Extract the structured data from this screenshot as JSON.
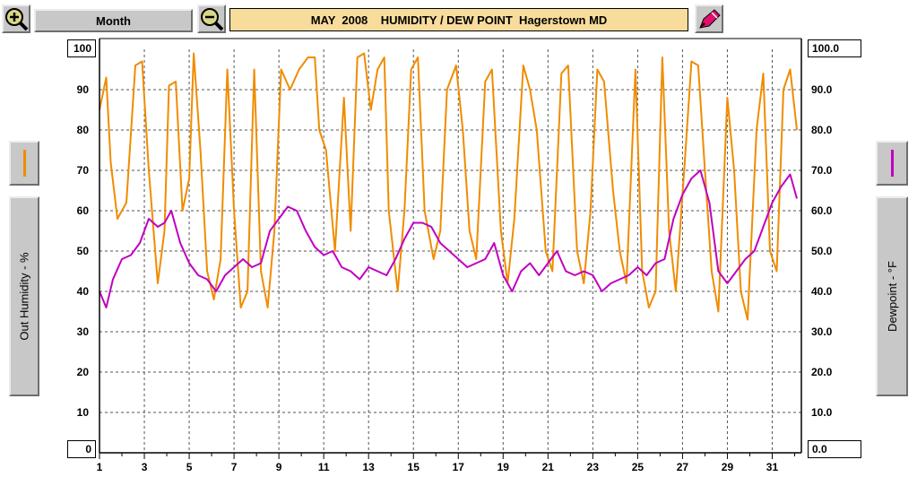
{
  "toolbar": {
    "zoom_in_icon": "zoom-in-magnifier",
    "zoom_out_icon": "zoom-out-magnifier",
    "period_label": "Month",
    "title": "MAY  2008    HUMIDITY / DEW POINT  Hagerstown MD",
    "pencil_icon": "pencil-icon"
  },
  "left_panel": {
    "top_value": "100",
    "bottom_value": "0",
    "axis_label": "Out Humidity - %",
    "legend_color": "#f08c00"
  },
  "right_panel": {
    "top_value": "100.0",
    "bottom_value": "0.0",
    "axis_label": "Dewpoint - °F",
    "legend_color": "#c000c0"
  },
  "chart_data": {
    "type": "line",
    "x_ticks": [
      "1",
      "3",
      "5",
      "7",
      "9",
      "11",
      "13",
      "15",
      "17",
      "19",
      "21",
      "23",
      "25",
      "27",
      "29",
      "31"
    ],
    "xlim": [
      1,
      32.3
    ],
    "y_left_ticks": [
      "90",
      "80",
      "70",
      "60",
      "50",
      "40",
      "30",
      "20",
      "10"
    ],
    "y_right_ticks": [
      "90.0",
      "80.0",
      "70.0",
      "60.0",
      "50.0",
      "40.0",
      "30.0",
      "20.0",
      "10.0"
    ],
    "ylim": [
      0,
      100
    ],
    "grid": true,
    "series": [
      {
        "color": "#f08c00",
        "x": [
          1.0,
          1.3,
          1.5,
          1.8,
          2.2,
          2.6,
          2.9,
          3.2,
          3.6,
          3.9,
          4.1,
          4.4,
          4.7,
          5.0,
          5.2,
          5.5,
          5.8,
          6.1,
          6.4,
          6.7,
          7.0,
          7.3,
          7.6,
          7.9,
          8.2,
          8.5,
          8.8,
          9.1,
          9.5,
          9.9,
          10.3,
          10.6,
          10.8,
          11.1,
          11.5,
          11.9,
          12.2,
          12.5,
          12.8,
          13.1,
          13.4,
          13.7,
          13.9,
          14.3,
          14.6,
          14.9,
          15.2,
          15.5,
          15.9,
          16.2,
          16.5,
          16.9,
          17.2,
          17.5,
          17.8,
          18.2,
          18.5,
          18.9,
          19.2,
          19.5,
          19.9,
          20.2,
          20.5,
          20.9,
          21.2,
          21.6,
          21.9,
          22.3,
          22.6,
          22.9,
          23.2,
          23.5,
          23.9,
          24.2,
          24.5,
          24.9,
          25.2,
          25.5,
          25.8,
          26.1,
          26.4,
          26.7,
          27.1,
          27.4,
          27.7,
          28.0,
          28.3,
          28.6,
          29.0,
          29.3,
          29.6,
          29.9,
          30.3,
          30.6,
          30.9,
          31.2,
          31.5,
          31.8,
          32.1
        ],
        "values": [
          85,
          93,
          72,
          58,
          62,
          96,
          97,
          70,
          42,
          55,
          91,
          92,
          60,
          68,
          99,
          75,
          45,
          38,
          48,
          95,
          60,
          36,
          40,
          95,
          45,
          36,
          55,
          95,
          90,
          95,
          98,
          98,
          80,
          75,
          50,
          88,
          55,
          98,
          99,
          85,
          95,
          98,
          60,
          40,
          60,
          95,
          98,
          60,
          48,
          55,
          90,
          96,
          80,
          55,
          48,
          92,
          95,
          55,
          42,
          58,
          96,
          90,
          80,
          50,
          45,
          94,
          96,
          50,
          42,
          60,
          95,
          92,
          65,
          50,
          42,
          95,
          45,
          36,
          40,
          98,
          55,
          40,
          72,
          97,
          96,
          70,
          45,
          35,
          88,
          70,
          40,
          33,
          80,
          94,
          50,
          45,
          90,
          95,
          80
        ],
        "name": ""
      },
      {
        "color": "#c000c0",
        "x": [
          1.0,
          1.3,
          1.6,
          2.0,
          2.4,
          2.8,
          3.2,
          3.6,
          3.9,
          4.2,
          4.6,
          5.0,
          5.4,
          5.8,
          6.2,
          6.6,
          7.0,
          7.4,
          7.8,
          8.2,
          8.6,
          9.0,
          9.4,
          9.8,
          10.2,
          10.6,
          11.0,
          11.4,
          11.8,
          12.2,
          12.6,
          13.0,
          13.4,
          13.8,
          14.2,
          14.6,
          15.0,
          15.4,
          15.8,
          16.2,
          16.6,
          17.0,
          17.4,
          17.8,
          18.2,
          18.6,
          19.0,
          19.4,
          19.8,
          20.2,
          20.6,
          21.0,
          21.4,
          21.8,
          22.2,
          22.6,
          23.0,
          23.4,
          23.8,
          24.2,
          24.6,
          25.0,
          25.4,
          25.8,
          26.2,
          26.6,
          27.0,
          27.4,
          27.8,
          28.2,
          28.6,
          29.0,
          29.4,
          29.8,
          30.2,
          30.6,
          31.0,
          31.4,
          31.8,
          32.1
        ],
        "values": [
          40,
          36,
          43,
          48,
          49,
          52,
          58,
          56,
          57,
          60,
          52,
          47,
          44,
          43,
          40,
          44,
          46,
          48,
          46,
          47,
          55,
          58,
          61,
          60,
          55,
          51,
          49,
          50,
          46,
          45,
          43,
          46,
          45,
          44,
          48,
          53,
          57,
          57,
          56,
          52,
          50,
          48,
          46,
          47,
          48,
          52,
          44,
          40,
          45,
          47,
          44,
          47,
          50,
          45,
          44,
          45,
          44,
          40,
          42,
          43,
          44,
          46,
          44,
          47,
          48,
          58,
          64,
          68,
          70,
          62,
          45,
          42,
          45,
          48,
          50,
          56,
          62,
          66,
          69,
          63
        ],
        "name": ""
      }
    ]
  }
}
